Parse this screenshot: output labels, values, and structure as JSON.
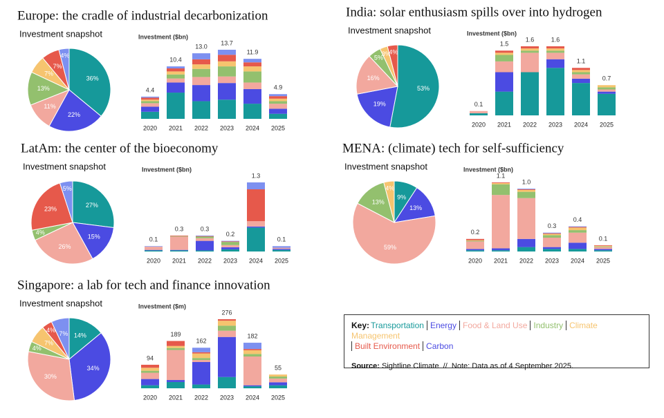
{
  "chart_data": [
    {
      "type": "pie",
      "panel_title": "Europe: the cradle of industrial decarbonization",
      "title": "Investment snapshot",
      "values": [
        36,
        22,
        11,
        13,
        7,
        7,
        4
      ],
      "value_labels": [
        "36%",
        "22%",
        "11%",
        "13%",
        "7%",
        "7%",
        "4%"
      ],
      "colors": [
        "#16999a",
        "#4b4be2",
        "#f2a89e",
        "#93c06e",
        "#f6c46f",
        "#e6594b",
        "#7d90f0"
      ]
    },
    {
      "type": "bar",
      "stacked": true,
      "title": "Investment ($bn)",
      "categories": [
        "2020",
        "2021",
        "2022",
        "2023",
        "2024",
        "2025"
      ],
      "total_labels": [
        "4.4",
        "10.4",
        "13.0",
        "13.7",
        "11.9",
        "4.9"
      ],
      "series": [
        {
          "color": "#16999a",
          "values": [
            1.4,
            5.2,
            3.5,
            3.8,
            3.0,
            1.0
          ]
        },
        {
          "color": "#4b4be2",
          "values": [
            1.0,
            2.0,
            3.2,
            3.3,
            2.9,
            1.0
          ]
        },
        {
          "color": "#f2a89e",
          "values": [
            0.7,
            0.8,
            1.6,
            1.3,
            1.3,
            1.0
          ]
        },
        {
          "color": "#93c06e",
          "values": [
            0.4,
            0.8,
            1.6,
            2.0,
            2.2,
            0.5
          ]
        },
        {
          "color": "#f6c46f",
          "values": [
            0.3,
            0.6,
            0.9,
            1.0,
            1.0,
            0.5
          ]
        },
        {
          "color": "#e6594b",
          "values": [
            0.4,
            0.6,
            1.0,
            1.3,
            0.8,
            0.5
          ]
        },
        {
          "color": "#7d90f0",
          "values": [
            0.2,
            0.4,
            1.2,
            1.0,
            0.7,
            0.4
          ]
        }
      ]
    },
    {
      "type": "pie",
      "panel_title": "India: solar enthusiasm spills over into hydrogen",
      "title": "Investment snapshot",
      "values": [
        53,
        19,
        16,
        5,
        3,
        4
      ],
      "value_labels": [
        "53%",
        "19%",
        "16%",
        "5%",
        "3%",
        "4%"
      ],
      "colors": [
        "#16999a",
        "#4b4be2",
        "#f2a89e",
        "#93c06e",
        "#f6c46f",
        "#e6594b"
      ]
    },
    {
      "type": "bar",
      "stacked": true,
      "title": "Investment ($bn)",
      "categories": [
        "2020",
        "2021",
        "2022",
        "2023",
        "2024",
        "2025"
      ],
      "total_labels": [
        "0.1",
        "1.5",
        "1.6",
        "1.6",
        "1.1",
        "0.7"
      ],
      "series": [
        {
          "color": "#16999a",
          "values": [
            0.05,
            0.55,
            1.0,
            1.1,
            0.75,
            0.5
          ]
        },
        {
          "color": "#4b4be2",
          "values": [
            0,
            0.45,
            0,
            0.2,
            0.1,
            0.05
          ]
        },
        {
          "color": "#f2a89e",
          "values": [
            0.05,
            0.25,
            0.45,
            0.15,
            0.1,
            0.05
          ]
        },
        {
          "color": "#93c06e",
          "values": [
            0,
            0.15,
            0.05,
            0.05,
            0.05,
            0.05
          ]
        },
        {
          "color": "#f6c46f",
          "values": [
            0,
            0.05,
            0.05,
            0.05,
            0.05,
            0.05
          ]
        },
        {
          "color": "#e6594b",
          "values": [
            0,
            0.05,
            0.05,
            0.05,
            0.05,
            0
          ]
        }
      ]
    },
    {
      "type": "pie",
      "panel_title": "LatAm: the center of the bioeconomy",
      "title": "Investment snapshot",
      "values": [
        27,
        15,
        26,
        4,
        23,
        5
      ],
      "value_labels": [
        "27%",
        "15%",
        "26%",
        "4%",
        "23%",
        "5%"
      ],
      "colors": [
        "#16999a",
        "#4b4be2",
        "#f2a89e",
        "#93c06e",
        "#e6594b",
        "#7d90f0"
      ]
    },
    {
      "type": "bar",
      "stacked": true,
      "title": "Investment ($bn)",
      "categories": [
        "2020",
        "2021",
        "2022",
        "2023",
        "2024",
        "2025"
      ],
      "total_labels": [
        "0.1",
        "0.3",
        "0.3",
        "0.2",
        "1.3",
        "0.1"
      ],
      "series": [
        {
          "color": "#16999a",
          "values": [
            0.02,
            0.02,
            0.02,
            0.04,
            0.45,
            0.03
          ]
        },
        {
          "color": "#4b4be2",
          "values": [
            0.01,
            0.01,
            0.18,
            0.04,
            0.02,
            0.02
          ]
        },
        {
          "color": "#f2a89e",
          "values": [
            0.06,
            0.25,
            0.05,
            0.04,
            0.1,
            0.02
          ]
        },
        {
          "color": "#93c06e",
          "values": [
            0,
            0.01,
            0.03,
            0.06,
            0,
            0
          ]
        },
        {
          "color": "#e6594b",
          "values": [
            0,
            0.01,
            0.01,
            0.01,
            0.6,
            0
          ]
        },
        {
          "color": "#7d90f0",
          "values": [
            0.01,
            0,
            0.01,
            0.01,
            0.13,
            0.03
          ]
        }
      ]
    },
    {
      "type": "pie",
      "panel_title": "MENA: (climate) tech for self-sufficiency",
      "title": "Investment snapshot",
      "values": [
        9,
        13,
        59,
        13,
        4
      ],
      "value_labels": [
        "9%",
        "13%",
        "59%",
        "13%",
        "4%"
      ],
      "colors": [
        "#16999a",
        "#4b4be2",
        "#f2a89e",
        "#93c06e",
        "#f6c46f"
      ]
    },
    {
      "type": "bar",
      "stacked": true,
      "title": "Investment ($bn)",
      "categories": [
        "2020",
        "2021",
        "2022",
        "2023",
        "2024",
        "2025"
      ],
      "total_labels": [
        "0.2",
        "1.1",
        "1.0",
        "0.3",
        "0.4",
        "0.1"
      ],
      "series": [
        {
          "color": "#16999a",
          "values": [
            0.02,
            0.02,
            0.07,
            0.04,
            0.04,
            0.02
          ]
        },
        {
          "color": "#4b4be2",
          "values": [
            0.02,
            0.03,
            0.13,
            0.03,
            0.1,
            0.02
          ]
        },
        {
          "color": "#f2a89e",
          "values": [
            0.12,
            0.85,
            0.65,
            0.15,
            0.16,
            0.03
          ]
        },
        {
          "color": "#93c06e",
          "values": [
            0.01,
            0.17,
            0.1,
            0.04,
            0.04,
            0.01
          ]
        },
        {
          "color": "#f6c46f",
          "values": [
            0.01,
            0.02,
            0.03,
            0.02,
            0.04,
            0.01
          ]
        },
        {
          "color": "#e6594b",
          "values": [
            0.02,
            0.01,
            0.01,
            0.01,
            0.01,
            0.01
          ]
        },
        {
          "color": "#7d90f0",
          "values": [
            0,
            0,
            0.01,
            0.01,
            0.01,
            0
          ]
        }
      ]
    },
    {
      "type": "pie",
      "panel_title": "Singapore: a lab for tech and finance innovation",
      "title": "Investment snapshot",
      "values": [
        14,
        34,
        30,
        4,
        7,
        4,
        7
      ],
      "value_labels": [
        "14%",
        "34%",
        "30%",
        "4%",
        "7%",
        "4%",
        "7%"
      ],
      "colors": [
        "#16999a",
        "#4b4be2",
        "#f2a89e",
        "#93c06e",
        "#f6c46f",
        "#e6594b",
        "#7d90f0"
      ]
    },
    {
      "type": "bar",
      "stacked": true,
      "title": "Investment ($m)",
      "categories": [
        "2020",
        "2021",
        "2022",
        "2023",
        "2024",
        "2025"
      ],
      "total_labels": [
        "94",
        "189",
        "162",
        "276",
        "182",
        "55"
      ],
      "series": [
        {
          "color": "#16999a",
          "values": [
            12,
            25,
            15,
            45,
            8,
            12
          ]
        },
        {
          "color": "#4b4be2",
          "values": [
            25,
            8,
            90,
            160,
            4,
            12
          ]
        },
        {
          "color": "#f2a89e",
          "values": [
            25,
            120,
            8,
            25,
            115,
            15
          ]
        },
        {
          "color": "#93c06e",
          "values": [
            8,
            8,
            8,
            20,
            10,
            8
          ]
        },
        {
          "color": "#f6c46f",
          "values": [
            12,
            8,
            18,
            20,
            15,
            8
          ]
        },
        {
          "color": "#e6594b",
          "values": [
            12,
            20,
            5,
            6,
            5,
            0
          ]
        },
        {
          "color": "#7d90f0",
          "values": [
            0,
            0,
            18,
            0,
            25,
            0
          ]
        }
      ]
    }
  ],
  "key": {
    "label": "Key:",
    "entries": [
      {
        "name": "Transportation",
        "color": "#16999a"
      },
      {
        "name": "Energy",
        "color": "#4b4be2"
      },
      {
        "name": "Food & Land Use",
        "color": "#f2a89e"
      },
      {
        "name": "Industry",
        "color": "#93c06e"
      },
      {
        "name": "Climate Management",
        "color": "#f6c46f"
      },
      {
        "name": "Built Environment",
        "color": "#e6594b"
      },
      {
        "name": "Carbon",
        "color": "#4b4be2"
      }
    ],
    "source_label": "Source:",
    "source_text": "Sightline Climate  //  Note: Data as of 4 September 2025."
  }
}
